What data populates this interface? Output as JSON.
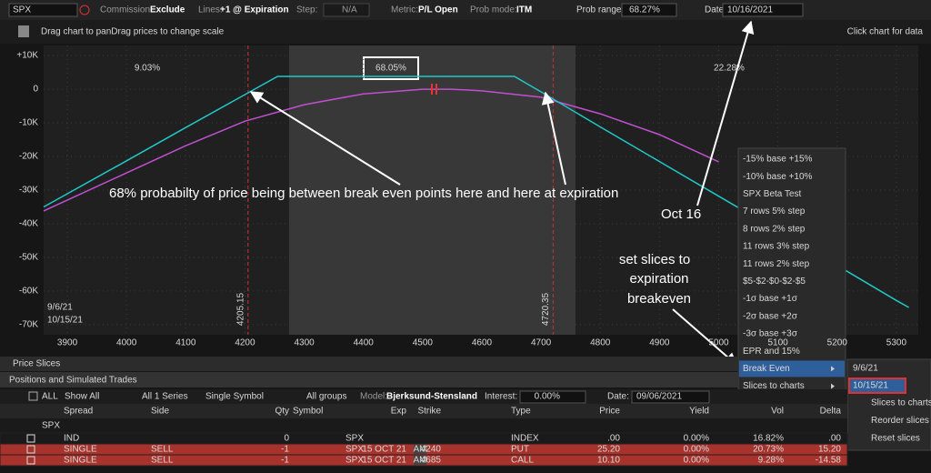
{
  "toolbar": {
    "symbol": "SPX",
    "commission_label": "Commission:",
    "commission": "Exclude",
    "lines_label": "Lines:",
    "lines": "+1 @ Expiration",
    "step_label": "Step:",
    "step": "N/A",
    "metric_label": "Metric:",
    "metric": "P/L Open",
    "prob_mode_label": "Prob mode:",
    "prob_mode": "ITM",
    "prob_range_label": "Prob range:",
    "prob_range": "68.27%",
    "date_label": "Date:",
    "date": "10/16/2021"
  },
  "chart_header": {
    "hint": "Drag chart to panDrag prices to change scale",
    "click_hint": "Click chart for data"
  },
  "chart": {
    "type": "line",
    "xlim": [
      3860,
      5337
    ],
    "ylim": [
      -73000,
      13000
    ],
    "xticks": [
      3900,
      4000,
      4100,
      4200,
      4300,
      4400,
      4500,
      4600,
      4700,
      4800,
      4900,
      5000,
      5100,
      5200,
      5300
    ],
    "yticks": [
      {
        "value": 10000,
        "label": "+10K"
      },
      0,
      {
        "value": -10000,
        "label": "-10K"
      },
      {
        "value": -20000,
        "label": "-20K"
      },
      {
        "value": -30000,
        "label": "-30K"
      },
      {
        "value": -40000,
        "label": "-40K"
      },
      {
        "value": -50000,
        "label": "-50K"
      },
      {
        "value": -60000,
        "label": "-60K"
      },
      {
        "value": -70000,
        "label": "-70K"
      }
    ],
    "series": [
      {
        "name": "9/6/21",
        "color": "#c050d0",
        "x": [
          3860,
          4000,
          4100,
          4200,
          4300,
          4400,
          4500,
          4550,
          4600,
          4700,
          4800,
          4900,
          5000
        ],
        "y": [
          -36200,
          -24900,
          -16800,
          -9500,
          -4600,
          -1400,
          0,
          0,
          -500,
          -2400,
          -7300,
          -13500,
          -21600
        ]
      },
      {
        "name": "10/15/21",
        "color": "#20c8c8",
        "x": [
          3860,
          4000,
          4100,
          4200,
          4255,
          4655,
          4700,
          4800,
          4900,
          5000,
          5100,
          5200,
          5300,
          5321
        ],
        "y": [
          -35000,
          -21300,
          -11400,
          -1600,
          3800,
          3800,
          -800,
          -11200,
          -21500,
          -31800,
          -42100,
          -52400,
          -62800,
          -64900
        ]
      }
    ],
    "breakevens": [
      4205.15,
      4720.35
    ],
    "probabilities": [
      "9.03%",
      "68.05%",
      "22.28%"
    ]
  },
  "annotations": {
    "main": "68% probabilty of price being between break even points here and here at expiration",
    "date_note": "Oct 16",
    "slices_note": [
      "set slices to",
      "expiration",
      "breakeven"
    ]
  },
  "slice_menu": {
    "items": [
      "-15% base +15%",
      "-10% base +10%",
      "SPX Beta Test",
      "7 rows 5% step",
      "8 rows 2% step",
      "11 rows 3% step",
      "11 rows 2% step",
      "$5-$2-$0-$2-$5",
      "-1σ base +1σ",
      "-2σ base +2σ",
      "-3σ base +3σ",
      "EPR and 15%",
      "Break Even",
      "Slices to charts"
    ]
  },
  "slice_submenu": {
    "dates": [
      "9/6/21",
      "10/15/21"
    ],
    "items": [
      "Slices to charts",
      "Reorder slices by",
      "Reset slices"
    ]
  },
  "sections": {
    "price_slices": "Price Slices",
    "positions": "Positions and Simulated Trades"
  },
  "positions_toolbar": {
    "all": "ALL",
    "show": "Show All",
    "series": "All 1 Series",
    "symbol_mode": "Single Symbol",
    "groups": "All groups",
    "model_label": "Model:",
    "model": "Bjerksund-Stensland",
    "interest_label": "Interest:",
    "interest": "0.00%",
    "date_label": "Date:",
    "date": "09/06/2021"
  },
  "table": {
    "header": {
      "spread": "Spread",
      "side": "Side",
      "qty": "Qty",
      "symbol": "Symbol",
      "exp": "Exp",
      "strike": "Strike",
      "type": "Type",
      "price": "Price",
      "yield": "Yield",
      "vol": "Vol",
      "delta": "Delta"
    },
    "group": "SPX",
    "rows": [
      {
        "spread": "IND",
        "qty": "0",
        "symbol": "SPX",
        "type": "INDEX",
        "price": ".00",
        "yield": "0.00%",
        "vol": "16.82%",
        "delta": ".00"
      },
      {
        "spread": "SINGLE",
        "side": "SELL",
        "qty": "-1",
        "symbol": "SPX",
        "exp": "15 OCT 21",
        "am": "AM",
        "strike": "4240",
        "type": "PUT",
        "price": "25.20",
        "yield": "0.00%",
        "vol": "20.73%",
        "delta": "15.20"
      },
      {
        "spread": "SINGLE",
        "side": "SELL",
        "qty": "-1",
        "symbol": "SPX",
        "exp": "15 OCT 21",
        "am": "AM",
        "strike": "4685",
        "type": "CALL",
        "price": "10.10",
        "yield": "0.00%",
        "vol": "9.28%",
        "delta": "-14.58"
      }
    ]
  }
}
